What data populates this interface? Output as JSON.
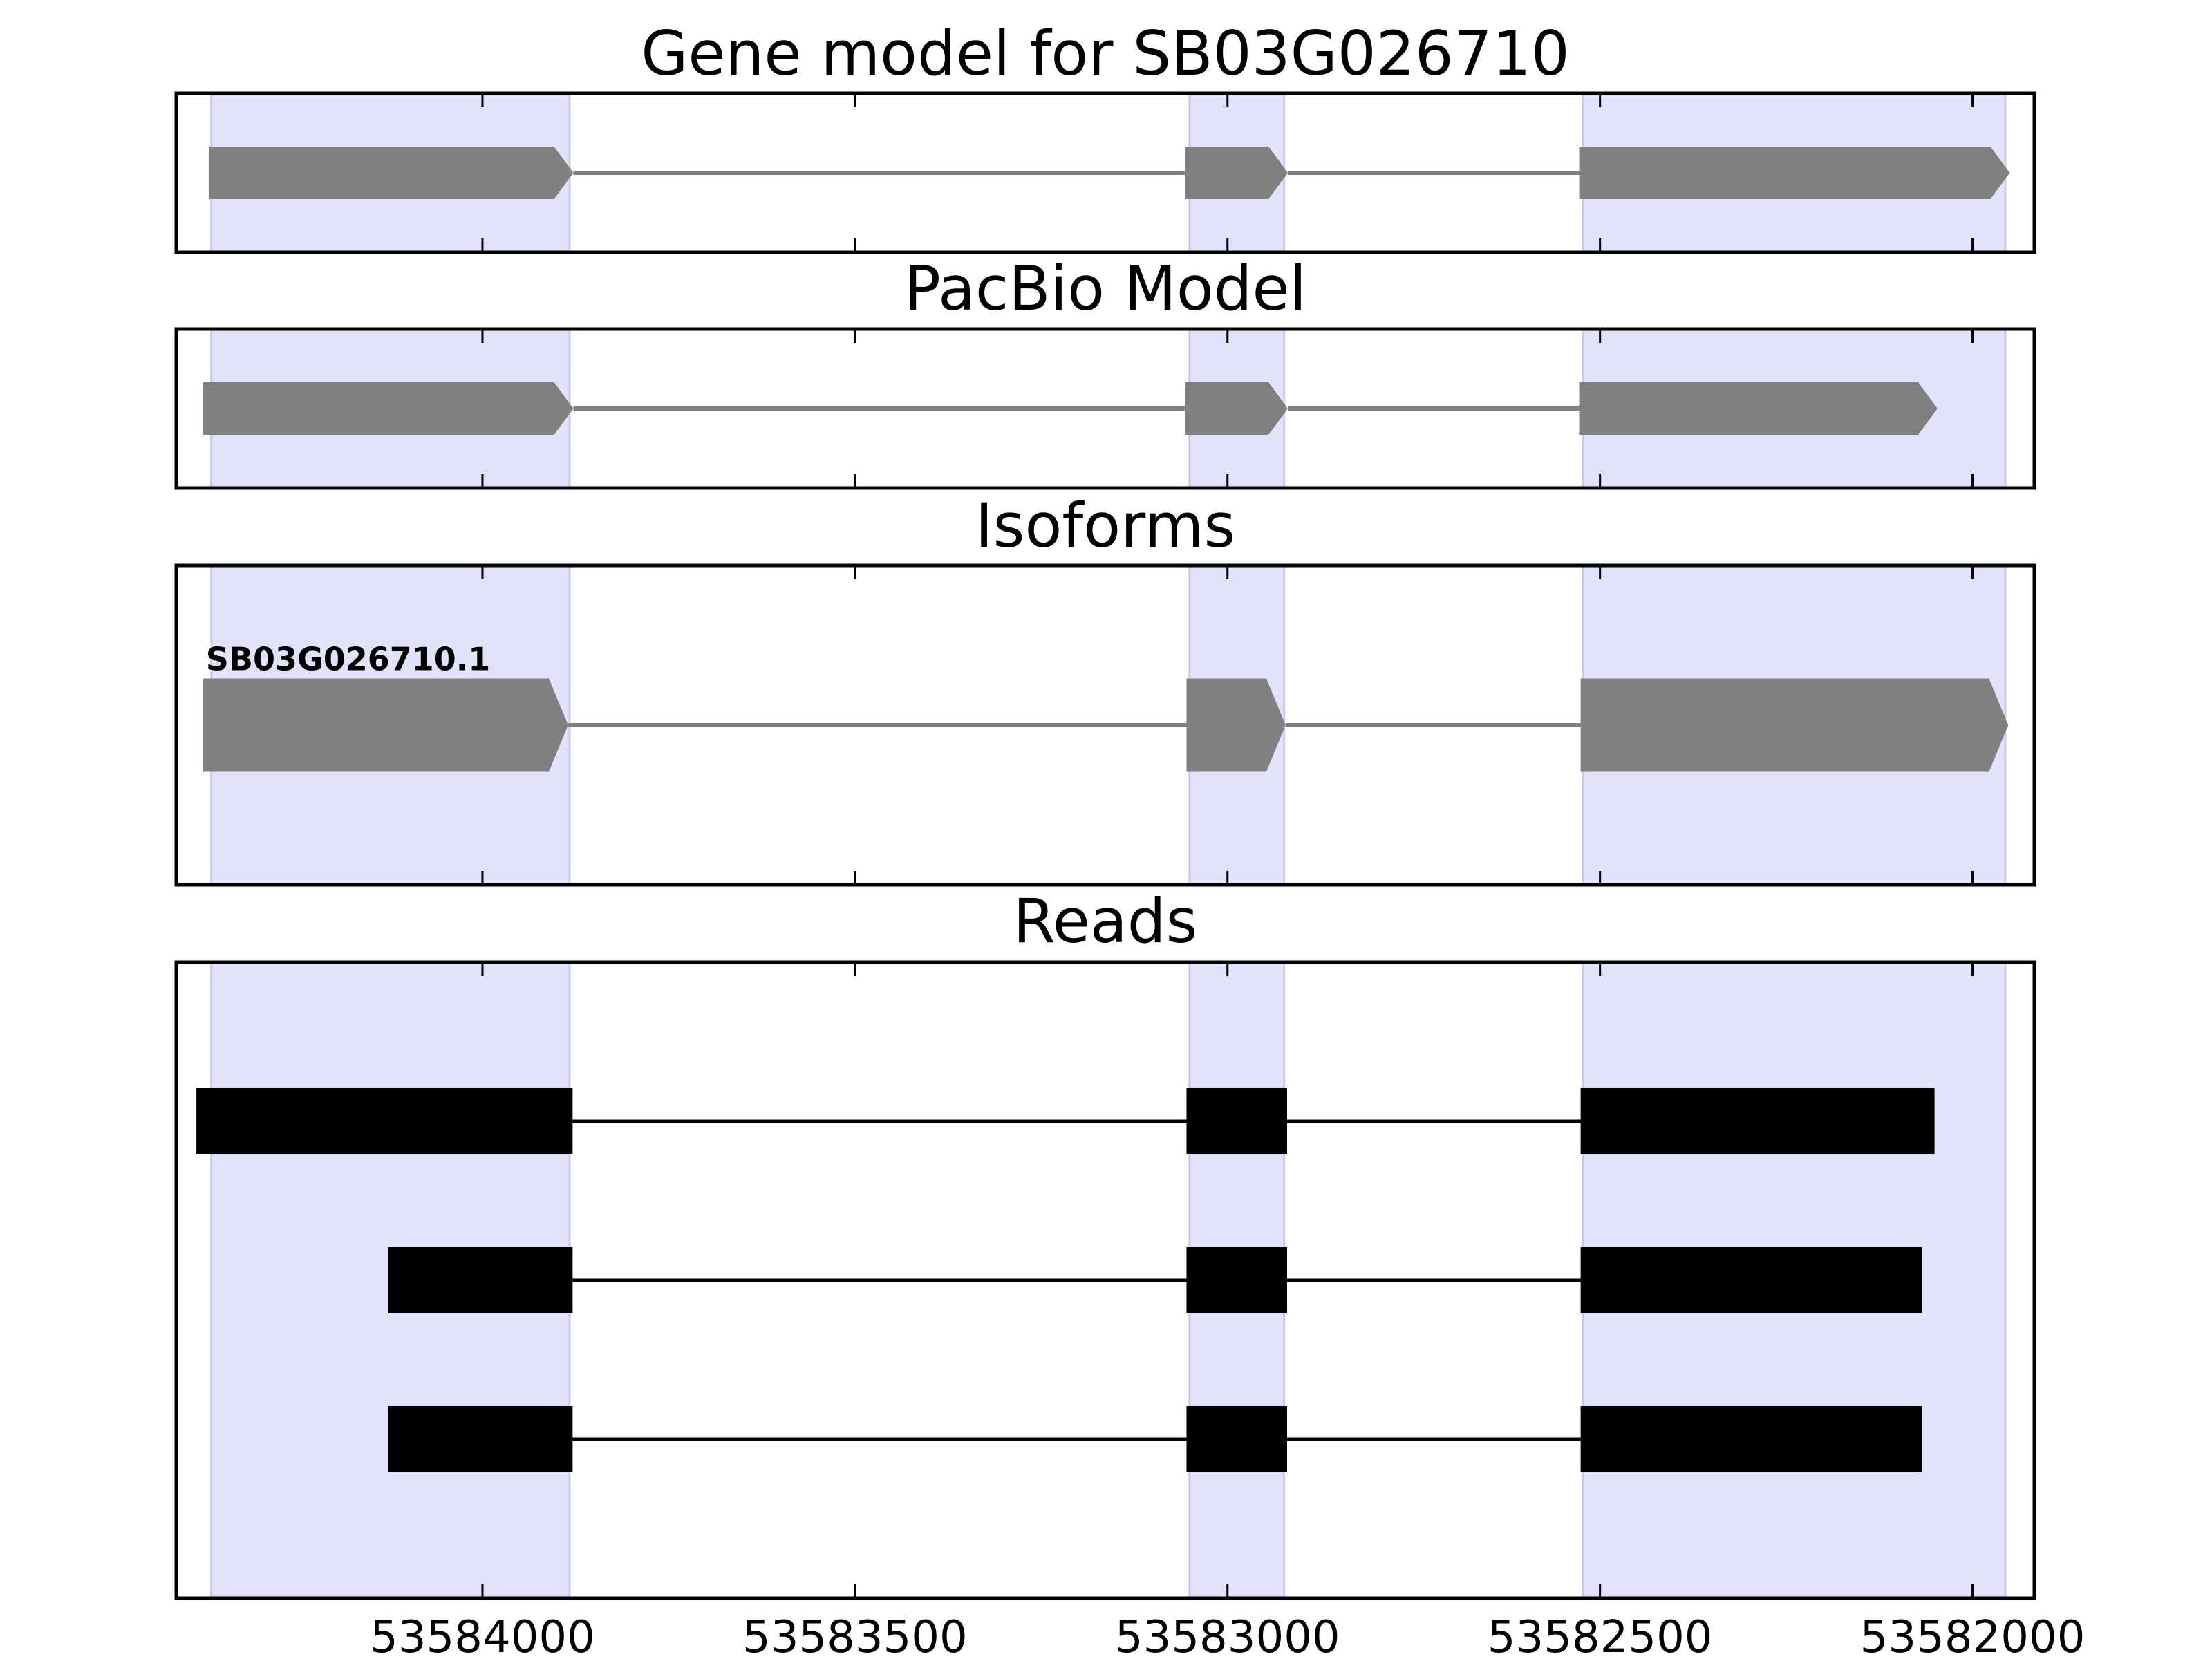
{
  "chart_data": [
    {
      "type": "gene-model",
      "title": "Gene model for SB03G026710",
      "style": "arrow",
      "color": "#808080",
      "shade_color": "#e2e2fb",
      "xlim": [
        53584411,
        53581917
      ],
      "xticks": [
        53584000,
        53583500,
        53583000,
        53582500,
        53582000
      ],
      "shaded_regions": [
        [
          53584364,
          53583883
        ],
        [
          53583051,
          53582924
        ],
        [
          53582523,
          53581956
        ]
      ],
      "tracks": [
        {
          "exons": [
            [
              53584367,
              53583878
            ],
            [
              53583057,
              53582919
            ],
            [
              53582528,
              53581950
            ]
          ]
        }
      ]
    },
    {
      "type": "gene-model",
      "title": "PacBio Model",
      "style": "arrow",
      "color": "#808080",
      "shade_color": "#e2e2fb",
      "xlim": [
        53584411,
        53581917
      ],
      "xticks": [
        53584000,
        53583500,
        53583000,
        53582500,
        53582000
      ],
      "shaded_regions": [
        [
          53584364,
          53583883
        ],
        [
          53583051,
          53582924
        ],
        [
          53582523,
          53581956
        ]
      ],
      "tracks": [
        {
          "exons": [
            [
              53584375,
              53583878
            ],
            [
              53583057,
              53582919
            ],
            [
              53582528,
              53582047
            ]
          ]
        }
      ]
    },
    {
      "type": "gene-model",
      "title": "Isoforms",
      "style": "arrow",
      "color": "#808080",
      "shade_color": "#e2e2fb",
      "xlim": [
        53584411,
        53581917
      ],
      "xticks": [
        53584000,
        53583500,
        53583000,
        53582500,
        53582000
      ],
      "shaded_regions": [
        [
          53584364,
          53583883
        ],
        [
          53583051,
          53582924
        ],
        [
          53582523,
          53581956
        ]
      ],
      "tracks": [
        {
          "name": "SB03G026710.1",
          "exons": [
            [
              53584375,
              53583885
            ],
            [
              53583055,
              53582922
            ],
            [
              53582526,
              53581952
            ]
          ]
        }
      ]
    },
    {
      "type": "gene-model",
      "title": "Reads",
      "style": "box",
      "color": "#000000",
      "shade_color": "#e2e2fb",
      "xlim": [
        53584411,
        53581917
      ],
      "xticks": [
        53584000,
        53583500,
        53583000,
        53582500,
        53582000
      ],
      "tick_labels": true,
      "shaded_regions": [
        [
          53584364,
          53583883
        ],
        [
          53583051,
          53582924
        ],
        [
          53582523,
          53581956
        ]
      ],
      "tracks": [
        {
          "exons": [
            [
              53584384,
              53583879
            ],
            [
              53583055,
              53582920
            ],
            [
              53582526,
              53582051
            ]
          ]
        },
        {
          "exons": [
            [
              53584127,
              53583879
            ],
            [
              53583055,
              53582920
            ],
            [
              53582526,
              53582068
            ]
          ]
        },
        {
          "exons": [
            [
              53584127,
              53583879
            ],
            [
              53583055,
              53582920
            ],
            [
              53582526,
              53582068
            ]
          ]
        }
      ]
    }
  ]
}
